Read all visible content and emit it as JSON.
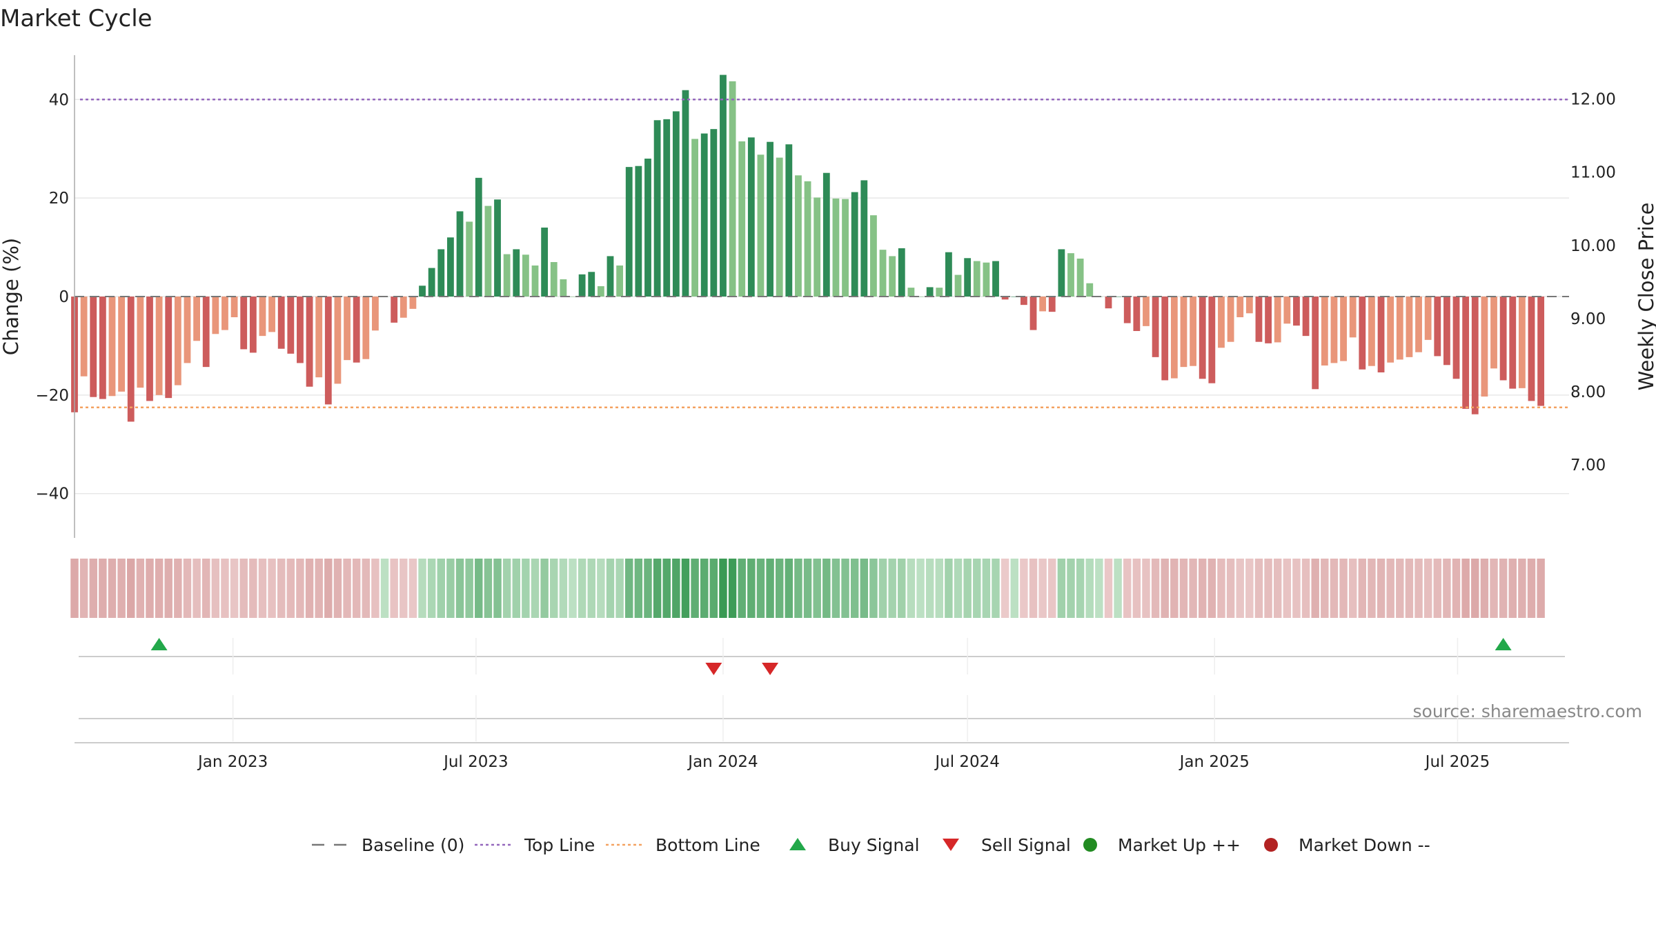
{
  "chart_data": {
    "type": "bar",
    "title": "Market Cycle",
    "ylabel_left": "Change (%)",
    "ylabel_right": "Weekly Close Price",
    "ylim": [
      -49,
      49
    ],
    "yticks": [
      -40,
      -20,
      0,
      20,
      40
    ],
    "ytick_labels": [
      "−40",
      "−20",
      "0",
      "20",
      "40"
    ],
    "right_ylim": [
      6.0,
      12.6
    ],
    "right_yticks": [
      7.0,
      8.0,
      9.0,
      10.0,
      11.0,
      12.0
    ],
    "right_ytick_labels": [
      "7.00",
      "8.00",
      "9.00",
      "10.00",
      "11.00",
      "12.00"
    ],
    "x_range": [
      "2022-09-05",
      "2025-09-22"
    ],
    "xticks": [
      "2023-01-01",
      "2023-07-01",
      "2024-01-01",
      "2024-07-01",
      "2025-01-01",
      "2025-07-01"
    ],
    "xtick_labels": [
      "Jan 2023",
      "Jul 2023",
      "Jan 2024",
      "Jul 2024",
      "Jan 2025",
      "Jul 2025"
    ],
    "start_date": "2022-09-05",
    "week_step_days": 7,
    "values": [
      -23.5,
      -16.2,
      -20.4,
      -20.8,
      -20.2,
      -19.3,
      -25.4,
      -18.5,
      -21.2,
      -20.0,
      -20.6,
      -18.0,
      -13.5,
      -9.0,
      -14.3,
      -7.6,
      -6.8,
      -4.2,
      -10.7,
      -11.4,
      -8.0,
      -7.2,
      -10.6,
      -11.6,
      -13.5,
      -18.3,
      -16.4,
      -21.9,
      -17.7,
      -12.9,
      -13.4,
      -12.7,
      -6.9,
      0,
      -5.3,
      -4.3,
      -2.5,
      2.2,
      5.8,
      9.6,
      12.0,
      17.3,
      15.2,
      24.1,
      18.4,
      19.7,
      8.6,
      9.6,
      8.5,
      6.3,
      14.0,
      7.0,
      3.5,
      0,
      4.5,
      5.0,
      2.1,
      8.2,
      6.3,
      26.3,
      26.5,
      28.0,
      35.8,
      36.0,
      37.6,
      41.9,
      32.0,
      33.1,
      34.0,
      45.0,
      43.7,
      31.5,
      32.3,
      28.8,
      31.4,
      28.2,
      30.9,
      24.6,
      23.4,
      20.1,
      25.1,
      19.9,
      19.8,
      21.2,
      23.6,
      16.5,
      9.5,
      8.2,
      9.8,
      1.8,
      0,
      1.9,
      1.8,
      9.0,
      4.4,
      7.8,
      7.2,
      6.9,
      7.2,
      -0.6,
      0,
      -1.7,
      -6.8,
      -3.0,
      -3.1,
      9.6,
      8.8,
      7.7,
      2.7,
      0,
      -2.4,
      0,
      -5.4,
      -7.0,
      -6.0,
      -12.3,
      -17.0,
      -16.6,
      -14.3,
      -14.1,
      -16.7,
      -17.6,
      -10.4,
      -9.2,
      -4.2,
      -3.4,
      -9.2,
      -9.5,
      -9.3,
      -5.5,
      -5.9,
      -8.0,
      -18.8,
      -14.0,
      -13.5,
      -13.1,
      -8.3,
      -14.8,
      -14.1,
      -15.4,
      -13.4,
      -12.8,
      -12.3,
      -11.3,
      -8.8,
      -12.1,
      -13.9,
      -16.7,
      -22.8,
      -23.9,
      -20.3,
      -14.6,
      -17.0,
      -18.7,
      -18.6,
      -21.2,
      -22.2
    ],
    "reference_lines": {
      "baseline": 0,
      "top": 40,
      "bottom": -22.5
    },
    "buy_signals": [
      "2022-11-07",
      "2025-08-04"
    ],
    "sell_signals": [
      "2023-12-25",
      "2024-02-05"
    ],
    "legend": {
      "position": "bottom",
      "entries": [
        {
          "label": "Baseline (0)",
          "color": "#777777"
        },
        {
          "label": "Top Line",
          "color": "#9467bd"
        },
        {
          "label": "Bottom Line",
          "color": "#f4a261"
        },
        {
          "label": "Buy Signal",
          "color": "#22a84a"
        },
        {
          "label": "Sell Signal",
          "color": "#d62728"
        },
        {
          "label": "Market Up ++",
          "color": "#228b22"
        },
        {
          "label": "Market Down --",
          "color": "#b22222"
        }
      ]
    },
    "colors": {
      "up_strong": "#2e8b57",
      "up_weak": "#86c286",
      "down_strong": "#cd5c5c",
      "down_weak": "#e9967a"
    },
    "source": "source: sharemaestro.com"
  }
}
